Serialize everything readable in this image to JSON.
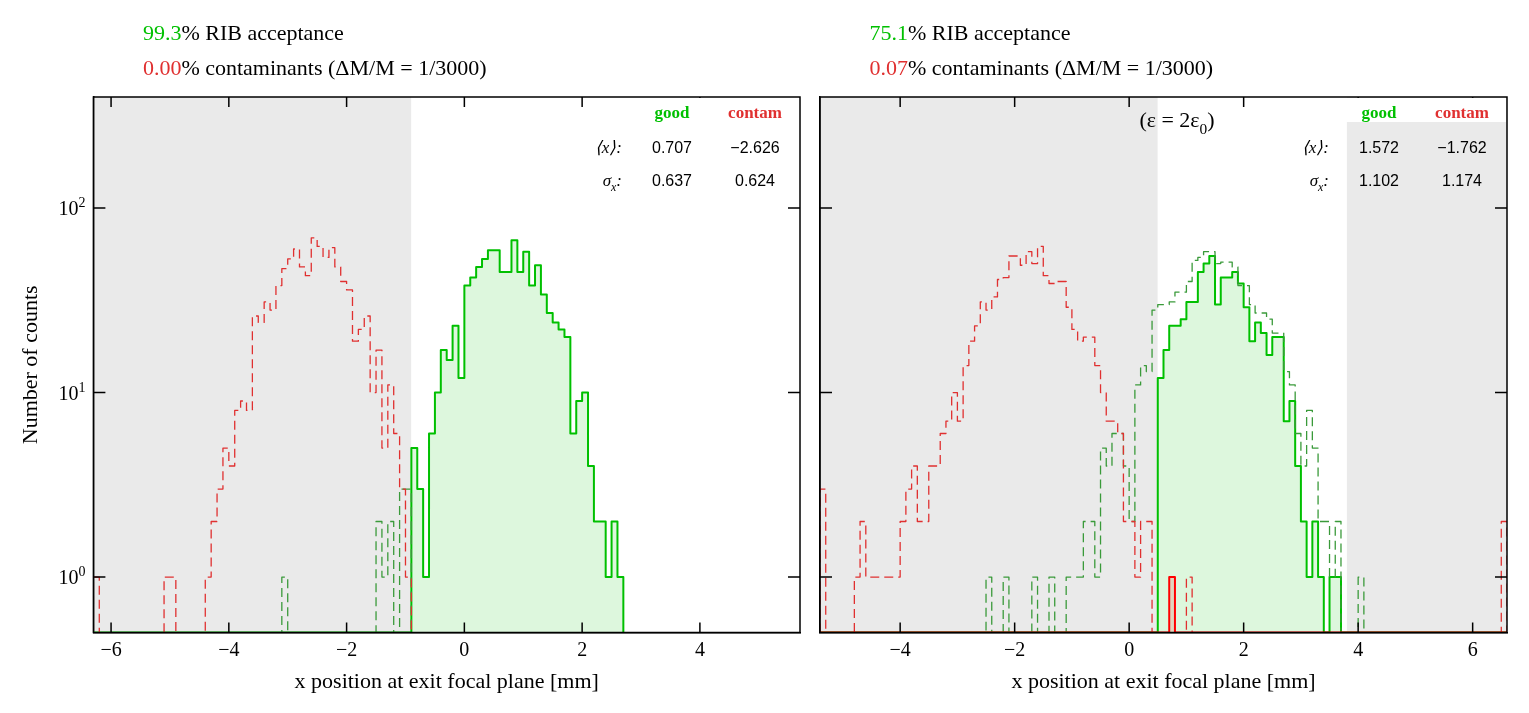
{
  "chart_data": [
    {
      "type": "histogram",
      "xlabel": "x position at exit focal plane [mm]",
      "ylabel": "Number of counts",
      "log": true,
      "legend": "top right",
      "xlim": [
        -6.3,
        5.7
      ],
      "ylim": [
        0.5,
        400
      ],
      "xticks": [
        {
          "value": -6,
          "label": "−6"
        },
        {
          "value": -4,
          "label": "−4"
        },
        {
          "value": -2,
          "label": "−2"
        },
        {
          "value": 0,
          "label": "0"
        },
        {
          "value": 2,
          "label": "2"
        },
        {
          "value": 4,
          "label": "4"
        }
      ],
      "yticks": [
        {
          "value": 1,
          "label": "10$^{0}$"
        },
        {
          "value": 10,
          "label": "10$^{1}$"
        },
        {
          "value": 100,
          "label": "10$^{2}$"
        }
      ],
      "bins": [
        -6.3,
        -6.2,
        -6.1,
        -6,
        -5.9,
        -5.8,
        -5.7,
        -5.6,
        -5.5,
        -5.4,
        -5.3,
        -5.2,
        -5.1,
        -5,
        -4.9,
        -4.8,
        -4.7,
        -4.6,
        -4.5,
        -4.4,
        -4.3,
        -4.2,
        -4.1,
        -4,
        -3.9,
        -3.8,
        -3.7,
        -3.6,
        -3.5,
        -3.4,
        -3.3,
        -3.2,
        -3.1,
        -3,
        -2.9,
        -2.8,
        -2.7,
        -2.6,
        -2.5,
        -2.4,
        -2.3,
        -2.2,
        -2.1,
        -2,
        -1.9,
        -1.8,
        -1.7,
        -1.6,
        -1.5,
        -1.4,
        -1.3,
        -1.2,
        -1.1,
        -1,
        -0.9,
        -0.8,
        -0.7,
        -0.6,
        -0.5,
        -0.4,
        -0.3,
        -0.2,
        -0.1,
        0,
        0.1,
        0.2,
        0.3,
        0.4,
        0.5,
        0.6,
        0.7,
        0.8,
        0.9,
        1,
        1.1,
        1.2,
        1.3,
        1.4,
        1.5,
        1.6,
        1.7,
        1.8,
        1.9,
        2,
        2.1,
        2.2,
        2.3,
        2.4,
        2.5,
        2.6,
        2.7
      ],
      "series": [
        {
          "name": "good",
          "color": "#00c000",
          "line_style": "solid",
          "values": [
            null,
            null,
            null,
            null,
            null,
            null,
            null,
            null,
            null,
            null,
            null,
            null,
            null,
            null,
            null,
            null,
            null,
            null,
            null,
            null,
            null,
            null,
            null,
            null,
            null,
            null,
            null,
            null,
            null,
            null,
            null,
            null,
            null,
            null,
            null,
            null,
            null,
            null,
            null,
            null,
            null,
            null,
            null,
            null,
            null,
            null,
            null,
            null,
            null,
            null,
            null,
            null,
            null,
            null,
            5,
            3,
            1,
            6,
            10,
            17,
            15,
            23,
            12,
            38,
            42,
            48,
            53,
            59,
            59,
            45,
            45,
            67,
            45,
            58,
            38,
            49,
            34,
            27,
            24,
            22,
            20,
            6,
            9,
            10,
            4,
            2,
            2,
            1,
            2,
            1
          ]
        },
        {
          "color": "#3a9a3a",
          "line_style": "dashed",
          "values": [
            null,
            null,
            null,
            null,
            null,
            null,
            null,
            null,
            null,
            null,
            null,
            null,
            null,
            null,
            null,
            null,
            null,
            null,
            null,
            null,
            null,
            null,
            null,
            null,
            null,
            null,
            null,
            null,
            null,
            null,
            null,
            null,
            1,
            null,
            null,
            null,
            null,
            null,
            null,
            null,
            null,
            null,
            null,
            null,
            null,
            null,
            null,
            null,
            2,
            1,
            2,
            null,
            3,
            3,
            null,
            null,
            null,
            null,
            null,
            null,
            null,
            null,
            null,
            null,
            null,
            null,
            null,
            null,
            null,
            null,
            null,
            null,
            null,
            null,
            null,
            null,
            null,
            null,
            null,
            null,
            null,
            null,
            null,
            null,
            null,
            null,
            null,
            null,
            null,
            null
          ]
        },
        {
          "name": "contam",
          "color": "#e03030",
          "line_style": "dashed",
          "values": [
            1,
            null,
            null,
            null,
            null,
            null,
            null,
            null,
            null,
            null,
            null,
            null,
            1,
            1,
            null,
            null,
            null,
            null,
            null,
            1,
            2,
            3,
            5,
            4,
            8,
            9,
            8,
            26,
            24,
            31,
            28,
            38,
            47,
            53,
            60,
            48,
            43,
            69,
            62,
            54,
            61,
            48,
            40,
            36,
            19,
            22,
            26,
            10,
            17,
            5,
            11,
            6,
            3,
            1,
            null,
            null,
            null,
            null,
            null,
            null,
            null,
            null,
            null,
            null,
            null,
            null,
            null,
            null,
            null,
            null,
            null,
            null,
            null,
            null,
            null,
            null,
            null,
            null,
            null,
            null,
            null,
            null,
            null,
            null,
            null,
            null,
            null,
            null,
            null,
            null
          ]
        }
      ],
      "bands": [
        {
          "axis": "x",
          "from": -6.3,
          "to": -0.9,
          "color": "#c8c8c8"
        }
      ],
      "annotations": [
        "99.3% RIB acceptance",
        "0.00% contaminants (ΔM/M = 1/3000)",
        "⟨x⟩:  0.707  −2.626",
        "σ$_{x}$:  0.637  0.624"
      ]
    },
    {
      "type": "histogram",
      "xlabel": "x position at exit focal plane [mm]",
      "log": true,
      "legend": "top right",
      "tick_labels": "x",
      "xlim": [
        -5.4,
        6.6
      ],
      "ylim": [
        0.5,
        400
      ],
      "xticks": [
        {
          "value": -4,
          "label": "−4"
        },
        {
          "value": -2,
          "label": "−2"
        },
        {
          "value": 0,
          "label": "0"
        },
        {
          "value": 2,
          "label": "2"
        },
        {
          "value": 4,
          "label": "4"
        },
        {
          "value": 6,
          "label": "6"
        }
      ],
      "yticks": [
        {
          "value": 1,
          "label": null
        },
        {
          "value": 10,
          "label": null
        },
        {
          "value": 100,
          "label": null
        }
      ],
      "bins": [
        -5.4,
        -5.3,
        -5.2,
        -5.1,
        -5,
        -4.9,
        -4.8,
        -4.7,
        -4.6,
        -4.5,
        -4.4,
        -4.3,
        -4.2,
        -4.1,
        -4,
        -3.9,
        -3.8,
        -3.7,
        -3.6,
        -3.5,
        -3.4,
        -3.3,
        -3.2,
        -3.1,
        -3,
        -2.9,
        -2.8,
        -2.7,
        -2.6,
        -2.5,
        -2.4,
        -2.3,
        -2.2,
        -2.1,
        -2,
        -1.9,
        -1.8,
        -1.7,
        -1.6,
        -1.5,
        -1.4,
        -1.3,
        -1.2,
        -1.1,
        -1,
        -0.9,
        -0.8,
        -0.7,
        -0.6,
        -0.5,
        -0.4,
        -0.3,
        -0.2,
        -0.1,
        0,
        0.1,
        0.2,
        0.3,
        0.4,
        0.5,
        0.6,
        0.7,
        0.8,
        0.9,
        1,
        1.1,
        1.2,
        1.3,
        1.4,
        1.5,
        1.6,
        1.7,
        1.8,
        1.9,
        2,
        2.1,
        2.2,
        2.3,
        2.4,
        2.5,
        2.6,
        2.7,
        2.8,
        2.9,
        3,
        3.1,
        3.2,
        3.3,
        3.4,
        3.5,
        3.6,
        3.7,
        3.8,
        3.9,
        4,
        4.1,
        4.2,
        4.3,
        4.4,
        4.5,
        4.6,
        4.7,
        4.8,
        4.9,
        5,
        5.1,
        5.2,
        5.3,
        5.4,
        5.5,
        5.6,
        5.7,
        5.8,
        5.9,
        6,
        6.1,
        6.2,
        6.3,
        6.4,
        6.5,
        6.6
      ],
      "series": [
        {
          "name": "good",
          "color": "#00c000",
          "line_style": "solid",
          "values": [
            null,
            null,
            null,
            null,
            null,
            null,
            null,
            null,
            null,
            null,
            null,
            null,
            null,
            null,
            null,
            null,
            null,
            null,
            null,
            null,
            null,
            null,
            null,
            null,
            null,
            null,
            null,
            null,
            null,
            null,
            null,
            null,
            null,
            null,
            null,
            null,
            null,
            null,
            null,
            null,
            null,
            null,
            null,
            null,
            null,
            null,
            null,
            null,
            null,
            null,
            null,
            null,
            null,
            null,
            null,
            null,
            null,
            null,
            null,
            12,
            17,
            23,
            23,
            25,
            31,
            31,
            45,
            50,
            55,
            30,
            42,
            42,
            45,
            39,
            29,
            19,
            24,
            21,
            16,
            20,
            20,
            7,
            9,
            4,
            2,
            1,
            2,
            1,
            null,
            1,
            1,
            null,
            null,
            null,
            null,
            null,
            null,
            null,
            null,
            null,
            null,
            null,
            null,
            null,
            null,
            null,
            null,
            null,
            null,
            null,
            null,
            null,
            null,
            null,
            null,
            null,
            null,
            null,
            null,
            null
          ]
        },
        {
          "color": "#3a9a3a",
          "line_style": "dashed",
          "values": [
            null,
            null,
            null,
            null,
            null,
            null,
            null,
            null,
            null,
            null,
            null,
            null,
            null,
            null,
            null,
            null,
            null,
            null,
            null,
            null,
            null,
            null,
            null,
            null,
            null,
            null,
            null,
            null,
            null,
            1,
            null,
            null,
            1,
            null,
            null,
            null,
            null,
            1,
            null,
            null,
            1,
            null,
            null,
            1,
            1,
            1,
            2,
            2,
            1,
            5,
            4,
            6,
            6,
            4,
            2,
            11,
            14,
            13,
            28,
            30,
            30,
            31,
            35,
            35,
            40,
            52,
            54,
            58,
            58,
            50,
            51,
            51,
            48,
            38,
            38,
            30,
            27,
            27,
            25,
            21,
            21,
            13,
            11,
            6,
            4,
            8,
            5,
            2,
            2,
            1,
            2,
            null,
            null,
            null,
            1,
            null,
            null,
            null,
            null,
            null,
            null,
            null,
            null,
            null,
            null,
            null,
            null,
            null,
            null,
            null,
            null,
            null,
            null,
            null,
            null,
            null,
            null,
            null,
            null,
            null
          ]
        },
        {
          "name": "contam",
          "color": "#e03030",
          "line_style": "dashed",
          "values": [
            3,
            null,
            null,
            null,
            null,
            null,
            1,
            2,
            1,
            1,
            1,
            1,
            1,
            1,
            2,
            3,
            4,
            2,
            2,
            4,
            4,
            6,
            7,
            10,
            7,
            14,
            19,
            23,
            31,
            28,
            33,
            41,
            42,
            55,
            55,
            49,
            58,
            50,
            62,
            43,
            39,
            40,
            40,
            29,
            22,
            19,
            20,
            20,
            14,
            10,
            7,
            7,
            6,
            2,
            2,
            1,
            2,
            2,
            null,
            null,
            null,
            null,
            null,
            null,
            1,
            null,
            null,
            null,
            null,
            null,
            null,
            null,
            null,
            null,
            null,
            null,
            null,
            null,
            null,
            null,
            null,
            null,
            null,
            null,
            null,
            null,
            null,
            null,
            null,
            null,
            null,
            null,
            null,
            null,
            null,
            null,
            null,
            null,
            null,
            null,
            null,
            null,
            null,
            null,
            null,
            null,
            null,
            null,
            null,
            null,
            null,
            null,
            null,
            null,
            null,
            null,
            null,
            null,
            null,
            2
          ]
        },
        {
          "color": "#ff0000",
          "line_style": "solid",
          "values": [
            null,
            null,
            null,
            null,
            null,
            null,
            null,
            null,
            null,
            null,
            null,
            null,
            null,
            null,
            null,
            null,
            null,
            null,
            null,
            null,
            null,
            null,
            null,
            null,
            null,
            null,
            null,
            null,
            null,
            null,
            null,
            null,
            null,
            null,
            null,
            null,
            null,
            null,
            null,
            null,
            null,
            null,
            null,
            null,
            null,
            null,
            null,
            null,
            null,
            null,
            null,
            null,
            null,
            null,
            null,
            null,
            null,
            null,
            null,
            null,
            null,
            1,
            null,
            null,
            null,
            null,
            null,
            null,
            null,
            null,
            null,
            null,
            null,
            null,
            null,
            null,
            null,
            null,
            null,
            null,
            null,
            null,
            null,
            null,
            null,
            null,
            null,
            null,
            null,
            null,
            null,
            null,
            null,
            null,
            null,
            null,
            null,
            null,
            null,
            null,
            null,
            null,
            null,
            null,
            null,
            null,
            null,
            null,
            null,
            null,
            null,
            null,
            null,
            null,
            null,
            null,
            null,
            null,
            null,
            null
          ]
        }
      ],
      "bands": [
        {
          "axis": "x",
          "from": -5.4,
          "to": 0.5,
          "color": "#c8c8c8"
        },
        {
          "axis": "x",
          "from": 3.8,
          "to": 6.6,
          "color": "#c8c8c8"
        }
      ],
      "annotations": [
        "75.1% RIB acceptance",
        "0.07% contaminants (ΔM/M = 1/3000)",
        "(ε = 2ε$_{0}$)",
        "⟨x⟩:  1.572  −1.762",
        "σ$_{x}$:  1.102  1.174"
      ]
    }
  ]
}
